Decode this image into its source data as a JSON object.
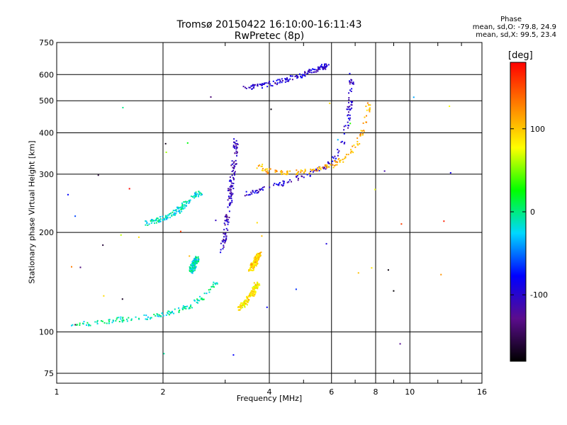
{
  "header": {
    "title_line1": "Tromsø 20150422 16:10:00-16:11:43",
    "title_line2": "RwPretec (8p)"
  },
  "phase_box": {
    "heading": "Phase",
    "line_o": "mean, sd,O: -79.8, 24.9",
    "line_x": "mean, sd,X:  99.5, 23.4"
  },
  "colorbar": {
    "unit_label": "[deg]",
    "ticks": [
      "100",
      "0",
      "-100"
    ],
    "tick_values": [
      100,
      0,
      -100
    ],
    "range": [
      -180,
      180
    ],
    "colors": [
      "#000000",
      "#5b0d8d",
      "#0000ff",
      "#00d8ff",
      "#00ff00",
      "#ffff00",
      "#ff8000",
      "#ff0000"
    ]
  },
  "chart_data": {
    "type": "scatter",
    "title": "Tromsø 20150422 16:10:00-16:11:43",
    "subtitle": "RwPretec (8p)",
    "xlabel": "Frequency [MHz]",
    "ylabel": "Stationary phase Virtual Height [km]",
    "x_scale": "log",
    "y_scale": "log",
    "xlim": [
      1,
      16
    ],
    "ylim": [
      70,
      750
    ],
    "x_ticks": [
      1,
      2,
      4,
      6,
      8,
      10,
      16
    ],
    "x_tick_labels": [
      "1",
      "2",
      "4",
      "6",
      "8",
      "10",
      "16"
    ],
    "y_ticks": [
      75,
      100,
      200,
      300,
      400,
      500,
      600,
      750
    ],
    "y_tick_labels": [
      "75",
      "100",
      "200",
      "300",
      "400",
      "500",
      "600",
      "750"
    ],
    "grid": true,
    "color_scale": "phase [deg]",
    "color_range": [
      -180,
      180
    ],
    "traces": [
      {
        "points": [
          [
            1.1,
            104
          ],
          [
            1.2,
            106
          ],
          [
            1.35,
            107
          ],
          [
            1.5,
            109
          ],
          [
            1.7,
            110
          ],
          [
            1.85,
            111
          ],
          [
            2.0,
            113
          ],
          [
            2.2,
            116
          ],
          [
            2.4,
            120
          ],
          [
            2.6,
            127
          ],
          [
            2.75,
            135
          ],
          [
            2.85,
            143
          ]
        ],
        "phase": -10
      },
      {
        "points": [
          [
            1.8,
            213
          ],
          [
            2.0,
            220
          ],
          [
            2.2,
            232
          ],
          [
            2.35,
            248
          ],
          [
            2.55,
            265
          ]
        ],
        "phase": -15
      },
      {
        "points": [
          [
            2.4,
            152
          ],
          [
            2.45,
            160
          ],
          [
            2.5,
            167
          ]
        ],
        "phase": -12
      },
      {
        "points": [
          [
            2.95,
            175
          ],
          [
            3.0,
            200
          ],
          [
            3.05,
            230
          ],
          [
            3.1,
            260
          ],
          [
            3.15,
            300
          ],
          [
            3.2,
            345
          ],
          [
            3.22,
            380
          ]
        ],
        "phase": -110
      },
      {
        "points": [
          [
            3.4,
            262
          ],
          [
            3.7,
            268
          ],
          [
            4.0,
            275
          ],
          [
            4.4,
            283
          ],
          [
            4.8,
            293
          ],
          [
            5.3,
            303
          ],
          [
            5.8,
            318
          ],
          [
            6.2,
            340
          ],
          [
            6.5,
            380
          ],
          [
            6.7,
            450
          ],
          [
            6.8,
            520
          ],
          [
            6.85,
            610
          ]
        ],
        "phase": -100
      },
      {
        "points": [
          [
            3.7,
            320
          ],
          [
            4.0,
            305
          ],
          [
            4.5,
            302
          ],
          [
            5.0,
            305
          ],
          [
            5.5,
            310
          ],
          [
            6.0,
            318
          ],
          [
            6.5,
            335
          ],
          [
            7.0,
            360
          ],
          [
            7.3,
            400
          ],
          [
            7.55,
            450
          ],
          [
            7.7,
            510
          ]
        ],
        "phase": 110
      },
      {
        "points": [
          [
            3.4,
            545
          ],
          [
            3.8,
            555
          ],
          [
            4.2,
            568
          ],
          [
            4.6,
            585
          ],
          [
            5.0,
            600
          ],
          [
            5.3,
            615
          ],
          [
            5.6,
            628
          ],
          [
            5.85,
            640
          ]
        ],
        "phase": -100
      },
      {
        "points": [
          [
            3.3,
            118
          ],
          [
            3.45,
            124
          ],
          [
            3.6,
            132
          ],
          [
            3.7,
            140
          ]
        ],
        "phase": 90
      },
      {
        "points": [
          [
            3.55,
            155
          ],
          [
            3.65,
            163
          ],
          [
            3.75,
            172
          ]
        ],
        "phase": 95
      }
    ]
  },
  "labels": {
    "ylabel": "Stationary phase Virtual Height [km]",
    "xlabel": "Frequency [MHz]"
  }
}
